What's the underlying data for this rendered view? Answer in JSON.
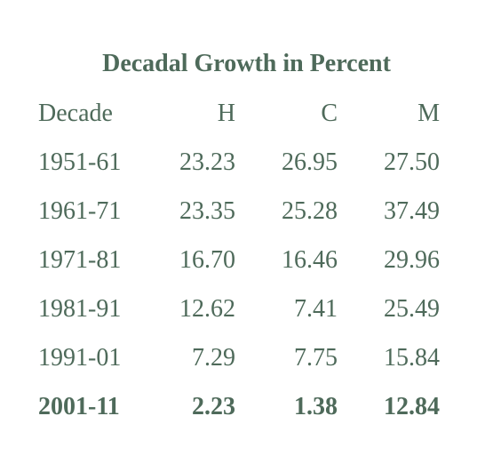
{
  "title": "Decadal Growth in Percent",
  "header": [
    "Decade",
    "H",
    "C",
    "M"
  ],
  "rows": [
    [
      "1951-61",
      "23.23",
      "26.95",
      "27.50"
    ],
    [
      "1961-71",
      "23.35",
      "25.28",
      "37.49"
    ],
    [
      "1971-81",
      "16.70",
      "16.46",
      "29.96"
    ],
    [
      "1981-91",
      "12.62",
      "7.41",
      "25.49"
    ],
    [
      "1991-01",
      "7.29",
      "7.75",
      "15.84"
    ],
    [
      "2001-11",
      "2.23",
      "1.38",
      "12.84"
    ]
  ],
  "bold_rows": [
    "2001-11"
  ],
  "colors": {
    "text": "#4e6a5a",
    "background": "#ffffff"
  }
}
